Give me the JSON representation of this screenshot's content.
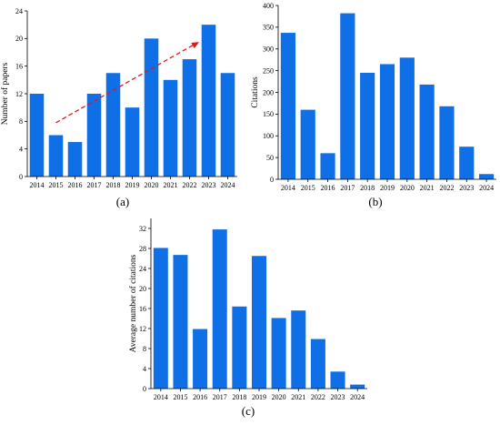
{
  "chart_data": [
    {
      "panel_label": "(a)",
      "type": "bar",
      "categories": [
        "2014",
        "2015",
        "2016",
        "2017",
        "2018",
        "2019",
        "2020",
        "2021",
        "2022",
        "2023",
        "2024"
      ],
      "values": [
        12,
        6,
        5,
        12,
        15,
        10,
        20,
        14,
        17,
        22,
        15
      ],
      "title": "",
      "xlabel": "",
      "ylabel": "Number of papers",
      "ylim": [
        0,
        24
      ],
      "yticks": [
        0,
        4,
        8,
        12,
        16,
        20,
        24
      ],
      "bar_color": "#0f6fe6",
      "grid": false,
      "annotations": [
        {
          "type": "dashed-arrow",
          "color": "#e0191c",
          "from": [
            "2015",
            7.8
          ],
          "to": [
            "2022",
            19.5
          ]
        }
      ]
    },
    {
      "panel_label": "(b)",
      "type": "bar",
      "categories": [
        "2014",
        "2015",
        "2016",
        "2017",
        "2018",
        "2019",
        "2020",
        "2021",
        "2022",
        "2023",
        "2024"
      ],
      "values": [
        337,
        160,
        60,
        382,
        245,
        265,
        280,
        218,
        168,
        75,
        12
      ],
      "title": "",
      "xlabel": "",
      "ylabel": "Citations",
      "ylim": [
        0,
        400
      ],
      "yticks": [
        0,
        50,
        100,
        150,
        200,
        250,
        300,
        350,
        400
      ],
      "bar_color": "#0f6fe6",
      "grid": false
    },
    {
      "panel_label": "(c)",
      "type": "bar",
      "categories": [
        "2014",
        "2015",
        "2016",
        "2017",
        "2018",
        "2019",
        "2020",
        "2021",
        "2022",
        "2023",
        "2024"
      ],
      "values": [
        28.1,
        26.7,
        11.9,
        31.8,
        16.4,
        26.5,
        14.1,
        15.6,
        9.9,
        3.4,
        0.8
      ],
      "title": "",
      "xlabel": "",
      "ylabel": "Average number of citations",
      "ylim": [
        0,
        34
      ],
      "yticks": [
        0,
        4,
        8,
        12,
        16,
        20,
        24,
        28,
        32
      ],
      "bar_color": "#0f6fe6",
      "grid": false
    }
  ]
}
